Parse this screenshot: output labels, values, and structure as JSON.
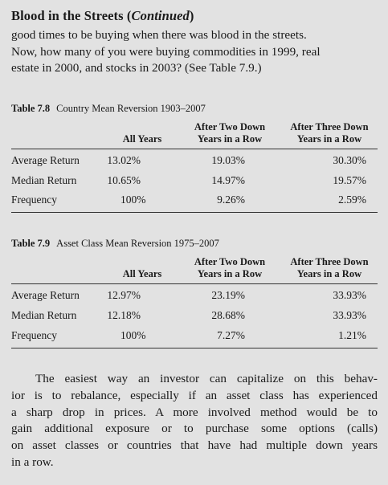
{
  "heading": {
    "main": "Blood in the Streets (",
    "italic": "Continued",
    "close": ")"
  },
  "intro_lines": [
    "good times to be buying when there was blood in the streets.",
    "Now, how many of you were buying commodities in 1999, real",
    "estate in 2000, and stocks in 2003? (See Table 7.9.)"
  ],
  "tables": [
    {
      "label": "Table 7.8",
      "title": "Country Mean Reversion 1903–2007",
      "columns": [
        "All Years",
        "After Two Down Years in a Row",
        "After Three Down Years in a Row"
      ],
      "col_lines": [
        [
          "All Years"
        ],
        [
          "After Two Down",
          "Years in a Row"
        ],
        [
          "After Three Down",
          "Years in a Row"
        ]
      ],
      "rows": [
        {
          "label": "Average Return",
          "values": [
            "13.02%",
            "19.03%",
            "30.30%"
          ]
        },
        {
          "label": "Median Return",
          "values": [
            "10.65%",
            "14.97%",
            "19.57%"
          ]
        },
        {
          "label": "Frequency",
          "values": [
            "100%",
            "9.26%",
            "2.59%"
          ]
        }
      ]
    },
    {
      "label": "Table 7.9",
      "title": "Asset Class Mean Reversion 1975–2007",
      "columns": [
        "All Years",
        "After Two Down Years in a Row",
        "After Three Down Years in a Row"
      ],
      "col_lines": [
        [
          "All Years"
        ],
        [
          "After Two Down",
          "Years in a Row"
        ],
        [
          "After Three Down",
          "Years in a Row"
        ]
      ],
      "rows": [
        {
          "label": "Average Return",
          "values": [
            "12.97%",
            "23.19%",
            "33.93%"
          ]
        },
        {
          "label": "Median Return",
          "values": [
            "12.18%",
            "28.68%",
            "33.93%"
          ]
        },
        {
          "label": "Frequency",
          "values": [
            "100%",
            "7.27%",
            "1.21%"
          ]
        }
      ]
    }
  ],
  "body_lines": [
    "The easiest way an investor can capitalize on this behav-",
    "ior is to rebalance, especially if an asset class has experienced",
    "a sharp drop in prices. A more involved method would be to",
    "gain additional exposure or to purchase some options (calls)",
    "on asset classes or countries that have had multiple down years",
    "in a row."
  ]
}
